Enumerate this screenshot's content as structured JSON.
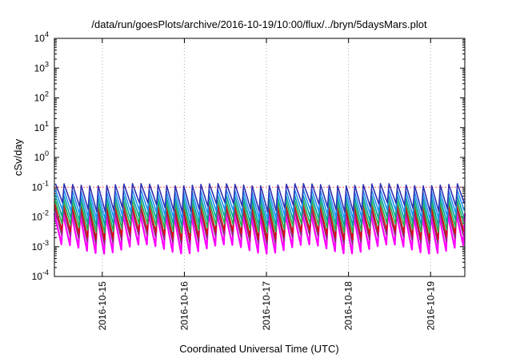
{
  "chart_data": {
    "type": "line",
    "title": "/data/run/goesPlots/archive/2016-10-19/10:00/flux/../bryn/5daysMars.plot",
    "xlabel": "Coordinated Universal Time (UTC)",
    "ylabel": "cSv/day",
    "y_scale": "log",
    "ylim": [
      0.0001,
      10000
    ],
    "y_ticks": [
      {
        "value": 0.0001,
        "mant": "10",
        "exp": "-4"
      },
      {
        "value": 0.001,
        "mant": "10",
        "exp": "-3"
      },
      {
        "value": 0.01,
        "mant": "10",
        "exp": "-2"
      },
      {
        "value": 0.1,
        "mant": "10",
        "exp": "-1"
      },
      {
        "value": 1,
        "mant": "10",
        "exp": "0"
      },
      {
        "value": 10,
        "mant": "10",
        "exp": "1"
      },
      {
        "value": 100,
        "mant": "10",
        "exp": "2"
      },
      {
        "value": 1000,
        "mant": "10",
        "exp": "3"
      },
      {
        "value": 10000,
        "mant": "10",
        "exp": "4"
      }
    ],
    "xlim": [
      "2016-10-14T10:00",
      "2016-10-19T10:00"
    ],
    "x_ticks": [
      "2016-10-15",
      "2016-10-16",
      "2016-10-17",
      "2016-10-18",
      "2016-10-19"
    ],
    "grid": true,
    "reference_line": {
      "value": 0.1,
      "color": "#ff6060"
    },
    "sawtooth_cycles_per_day": 9.6,
    "series": [
      {
        "color": "#ff00ff",
        "peak": 0.012,
        "trough": 0.0012,
        "phase": 0.0
      },
      {
        "color": "#8b2a7a",
        "peak": 0.018,
        "trough": 0.0025,
        "phase": 0.03
      },
      {
        "color": "#d01010",
        "peak": 0.025,
        "trough": 0.0035,
        "phase": 0.05
      },
      {
        "color": "#22b14c",
        "peak": 0.035,
        "trough": 0.006,
        "phase": 0.07
      },
      {
        "color": "#00a0a0",
        "peak": 0.05,
        "trough": 0.01,
        "phase": 0.09
      },
      {
        "color": "#1e90ff",
        "peak": 0.075,
        "trough": 0.017,
        "phase": 0.11
      },
      {
        "color": "#3030b0",
        "peak": 0.12,
        "trough": 0.03,
        "phase": 0.13
      }
    ]
  }
}
